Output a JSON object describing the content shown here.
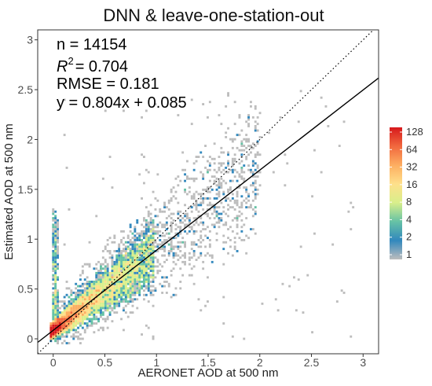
{
  "chart_data": {
    "type": "heatmap",
    "title": "DNN & leave-one-station-out",
    "xlabel": "AERONET AOD at 500 nm",
    "ylabel": "Estimated AOD at 500 nm",
    "xlim": [
      -0.15,
      3.15
    ],
    "ylim": [
      -0.15,
      3.1
    ],
    "x_ticks": [
      0,
      0.5,
      1,
      1.5,
      2,
      2.5,
      3
    ],
    "x_tick_labels": [
      "0",
      "0.5",
      "1",
      "1.5",
      "2",
      "2.5",
      "3"
    ],
    "y_ticks": [
      0,
      0.5,
      1,
      1.5,
      2,
      2.5,
      3
    ],
    "y_tick_labels": [
      "0",
      "0.5",
      "1",
      "1.5",
      "2",
      "2.5",
      "3"
    ],
    "grid": false,
    "stats": {
      "n_text": "n = 14154",
      "r2_label": "R",
      "r2_sup": "2",
      "r2_value": "= 0.704",
      "rmse_text": "RMSE = 0.181",
      "fit_text": "y = 0.804x + 0.085"
    },
    "fit_line": {
      "slope": 0.804,
      "intercept": 0.085,
      "color": "#000000",
      "style": "solid"
    },
    "one_to_one_line": {
      "slope": 1,
      "intercept": 0,
      "color": "#000000",
      "style": "dotted"
    },
    "density_legend": {
      "placement": "right",
      "labels": [
        "128",
        "64",
        "32",
        "16",
        "8",
        "4",
        "2",
        "1"
      ],
      "colors": [
        "#d7191c",
        "#f1683e",
        "#fdae61",
        "#fee08b",
        "#d9ef8b",
        "#66c2a5",
        "#3288bd",
        "#bdbdbd"
      ]
    },
    "density_note": "binned point counts, log color scale"
  }
}
